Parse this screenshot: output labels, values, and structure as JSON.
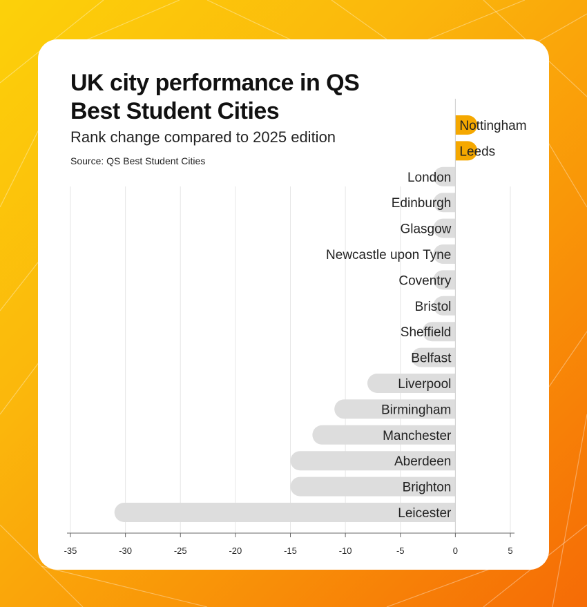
{
  "header": {
    "title": "UK city performance in QS Best Student Cities",
    "subtitle": "Rank change compared to 2025 edition",
    "source": "Source: QS Best Student Cities"
  },
  "colors": {
    "positive": "#f5a800",
    "negative": "#dddddd",
    "grid": "#e6e6e6"
  },
  "chart_data": {
    "type": "bar",
    "orientation": "horizontal",
    "title": "UK city performance in QS Best Student Cities",
    "subtitle": "Rank change compared to 2025 edition",
    "xlabel": "",
    "ylabel": "",
    "xlim": [
      -35,
      5
    ],
    "xticks": [
      -35,
      -30,
      -25,
      -20,
      -15,
      -10,
      -5,
      0,
      5
    ],
    "grid": true,
    "categories": [
      "Nottingham",
      "Leeds",
      "London",
      "Edinburgh",
      "Glasgow",
      "Newcastle upon Tyne",
      "Coventry",
      "Bristol",
      "Sheffield",
      "Belfast",
      "Liverpool",
      "Birmingham",
      "Manchester",
      "Aberdeen",
      "Brighton",
      "Leicester"
    ],
    "values": [
      2,
      2,
      -2,
      -2,
      -2,
      -2,
      -2,
      -2,
      -3,
      -4,
      -8,
      -11,
      -13,
      -15,
      -15,
      -31
    ]
  }
}
